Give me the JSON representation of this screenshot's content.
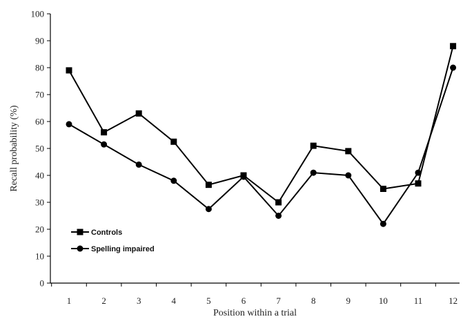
{
  "chart_data": {
    "type": "line",
    "x": [
      1,
      2,
      3,
      4,
      5,
      6,
      7,
      8,
      9,
      10,
      11,
      12
    ],
    "xlabel": "Position within a trial",
    "ylabel": "Recall probability (%)",
    "ylim": [
      0,
      100
    ],
    "yticks": [
      0,
      10,
      20,
      30,
      40,
      50,
      60,
      70,
      80,
      90,
      100
    ],
    "grid": false,
    "legend_position": "bottom-left",
    "series": [
      {
        "name": "Controls",
        "marker": "square",
        "values": [
          79,
          56,
          63,
          52.5,
          36.5,
          40,
          30,
          51,
          49,
          35,
          37,
          88
        ]
      },
      {
        "name": "Spelling impaired",
        "marker": "circle",
        "values": [
          59,
          51.5,
          44,
          38,
          27.5,
          39.5,
          25,
          41,
          40,
          22,
          41,
          80
        ]
      }
    ]
  },
  "colors": {
    "line": "#000000"
  }
}
